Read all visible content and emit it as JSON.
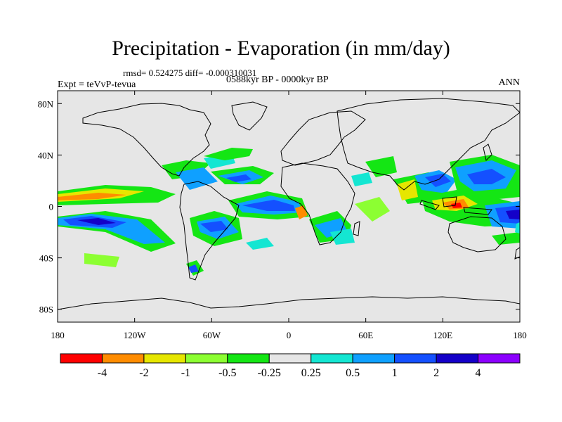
{
  "figure": {
    "title": "Precipitation - Evaporation (in mm/day)",
    "stats": "rmsd= 0.524275  diff= -0.000310031",
    "period": "0588kyr BP - 0000kyr BP",
    "experiment": "Expt = teVvP-tevua",
    "season": "ANN"
  },
  "map": {
    "projection": "cylindrical equidistant",
    "lon_range": [
      -180,
      180
    ],
    "lat_range": [
      -90,
      90
    ],
    "background_color": "#e6e6e6",
    "lat_ticks": [
      {
        "value": 80,
        "label": "80N"
      },
      {
        "value": 40,
        "label": "40N"
      },
      {
        "value": 0,
        "label": "0"
      },
      {
        "value": -40,
        "label": "40S"
      },
      {
        "value": -80,
        "label": "80S"
      }
    ],
    "lon_ticks": [
      {
        "value": -180,
        "label": "180"
      },
      {
        "value": -120,
        "label": "120W"
      },
      {
        "value": -60,
        "label": "60W"
      },
      {
        "value": 0,
        "label": "0"
      },
      {
        "value": 60,
        "label": "60E"
      },
      {
        "value": 120,
        "label": "120E"
      },
      {
        "value": 180,
        "label": "180"
      }
    ]
  },
  "colorbar": {
    "colors": [
      "#ff0000",
      "#ff8c00",
      "#e6e600",
      "#8cff32",
      "#14e614",
      "#e6e6e6",
      "#14e6d2",
      "#0fa0ff",
      "#1450ff",
      "#1400c8",
      "#8c00ff"
    ],
    "labels": [
      "-4",
      "-2",
      "-1",
      "-0.5",
      "-0.25",
      "0.25",
      "0.5",
      "1",
      "2",
      "4"
    ]
  }
}
